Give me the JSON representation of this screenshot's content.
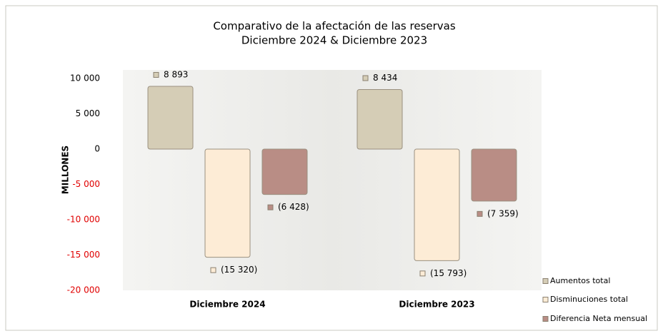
{
  "chart_data": {
    "type": "bar",
    "title": "Comparativo de la afectación de las reservas",
    "subtitle": "Diciembre 2024 & Diciembre 2023",
    "ylabel": "MILLONES",
    "categories": [
      "Diciembre 2024",
      "Diciembre 2023"
    ],
    "series": [
      {
        "name": "Aumentos total",
        "color": "#d5cdb6",
        "values": [
          8893,
          8434
        ],
        "value_labels": [
          "8 893",
          "8 434"
        ]
      },
      {
        "name": "Disminuciones total",
        "color": "#fdecd6",
        "values": [
          -15320,
          -15793
        ],
        "value_labels": [
          "(15 320)",
          "(15 793)"
        ]
      },
      {
        "name": "Diferencia Neta mensual",
        "color": "#b98d85",
        "values": [
          -6428,
          -7359
        ],
        "value_labels": [
          "(6 428)",
          "(7 359)"
        ]
      }
    ],
    "ylim": [
      -20000,
      10000
    ],
    "yticks": [
      {
        "value": 10000,
        "label": "10 000"
      },
      {
        "value": 5000,
        "label": "5 000"
      },
      0,
      {
        "value": -5000,
        "label": "-5 000"
      },
      {
        "value": -10000,
        "label": "-10 000"
      },
      {
        "value": -15000,
        "label": "-15 000"
      },
      {
        "value": -20000,
        "label": "-20 000"
      }
    ],
    "negative_tick_color": "#e00000",
    "legend": "lower right"
  }
}
